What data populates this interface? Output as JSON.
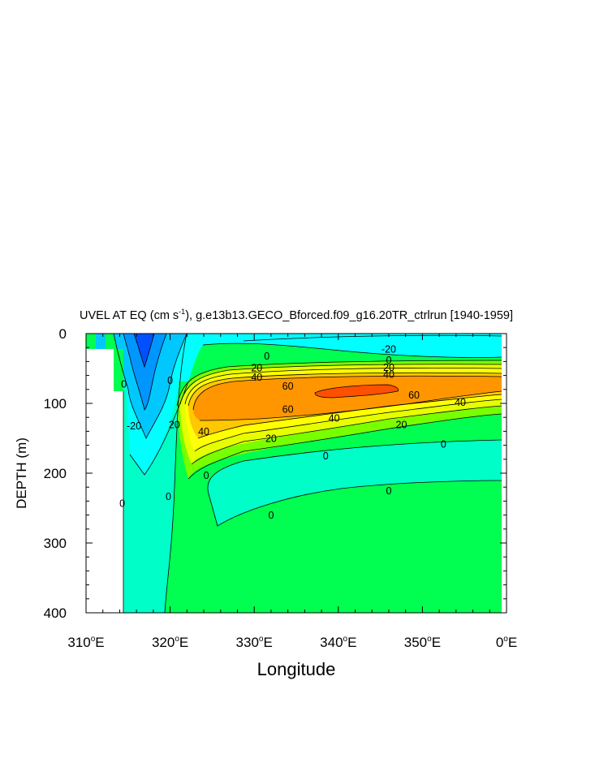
{
  "chart_data": {
    "type": "heatmap",
    "title": {
      "prefix": "UVEL AT EQ (cm s",
      "sup": "-1",
      "suffix": "), g.e13b13.GECO_Bforced.f09_g16.20TR_ctrlrun [1940-1959]"
    },
    "xlabel": "Longitude",
    "ylabel": "DEPTH (m)",
    "xlim": [
      310,
      360
    ],
    "ylim": [
      0,
      400
    ],
    "y_inverted": true,
    "grid": false,
    "x_ticks": [
      {
        "value": 310,
        "num": "310",
        "unit": "E"
      },
      {
        "value": 320,
        "num": "320",
        "unit": "E"
      },
      {
        "value": 330,
        "num": "330",
        "unit": "E"
      },
      {
        "value": 340,
        "num": "340",
        "unit": "E"
      },
      {
        "value": 350,
        "num": "350",
        "unit": "E"
      },
      {
        "value": 360,
        "num": "0",
        "unit": "E"
      }
    ],
    "y_ticks": [
      {
        "value": 0,
        "label": "0"
      },
      {
        "value": 100,
        "label": "100"
      },
      {
        "value": 200,
        "label": "200"
      },
      {
        "value": 300,
        "label": "300"
      },
      {
        "value": 400,
        "label": "400"
      }
    ],
    "contour_levels": [
      -40,
      -30,
      -20,
      -10,
      0,
      10,
      20,
      30,
      40,
      50,
      60,
      70
    ],
    "colors": {
      "land": "#ffffff",
      "lt_neg30": "#0050ff",
      "neg30_to_neg20": "#0096ff",
      "neg20_to_neg10": "#00c8ff",
      "neg10_to_0": "#00ffff",
      "zero_to_10": "#00ffc8",
      "ten_to_20": "#00ff50",
      "twenty_to_30": "#78ff00",
      "thirty_to_40": "#e6ff00",
      "forty_to_50": "#ffff00",
      "fifty_to_60": "#ffc800",
      "sixty_to_70": "#ff9600",
      "gt_70": "#ff5000"
    },
    "contour_labels": [
      {
        "text": "-20",
        "lon": 346,
        "depth": 22
      },
      {
        "text": "0",
        "lon": 331.5,
        "depth": 32
      },
      {
        "text": "0",
        "lon": 346,
        "depth": 38
      },
      {
        "text": "20",
        "lon": 330.3,
        "depth": 49
      },
      {
        "text": "20",
        "lon": 346,
        "depth": 48
      },
      {
        "text": "40",
        "lon": 330.3,
        "depth": 62
      },
      {
        "text": "40",
        "lon": 346,
        "depth": 58
      },
      {
        "text": "60",
        "lon": 334,
        "depth": 75
      },
      {
        "text": "60",
        "lon": 334,
        "depth": 108
      },
      {
        "text": "60",
        "lon": 349,
        "depth": 88
      },
      {
        "text": "40",
        "lon": 354.5,
        "depth": 98
      },
      {
        "text": "40",
        "lon": 339.5,
        "depth": 121
      },
      {
        "text": "40",
        "lon": 324,
        "depth": 140
      },
      {
        "text": "20",
        "lon": 347.5,
        "depth": 130
      },
      {
        "text": "20",
        "lon": 332,
        "depth": 150
      },
      {
        "text": "20",
        "lon": 320.5,
        "depth": 130
      },
      {
        "text": "0",
        "lon": 320,
        "depth": 67
      },
      {
        "text": "0",
        "lon": 314.5,
        "depth": 72
      },
      {
        "text": "-20",
        "lon": 315.7,
        "depth": 132
      },
      {
        "text": "0",
        "lon": 352.5,
        "depth": 158
      },
      {
        "text": "0",
        "lon": 338.5,
        "depth": 175
      },
      {
        "text": "0",
        "lon": 324.3,
        "depth": 203
      },
      {
        "text": "0",
        "lon": 319.8,
        "depth": 233
      },
      {
        "text": "0",
        "lon": 314.3,
        "depth": 243
      },
      {
        "text": "0",
        "lon": 346,
        "depth": 225
      },
      {
        "text": "0",
        "lon": 332,
        "depth": 260
      }
    ]
  }
}
